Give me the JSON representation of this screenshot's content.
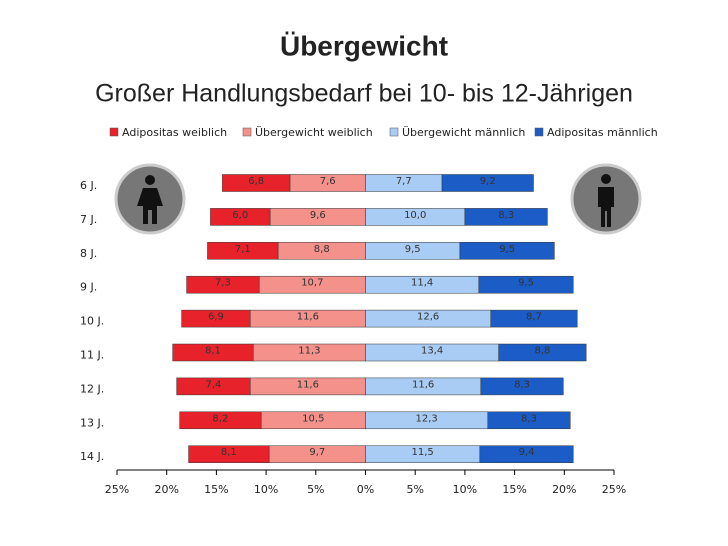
{
  "chart_data": {
    "type": "butterfly-bar",
    "title": "Übergewicht",
    "subtitle": "Großer Handlungsbedarf bei 10- bis 12-Jährigen",
    "categories": [
      "6 J.",
      "7 J.",
      "8 J.",
      "9 J.",
      "10 J.",
      "11 J.",
      "12 J.",
      "13 J.",
      "14 J."
    ],
    "series": [
      {
        "name": "Adipositas weiblich",
        "color": "#e8222b",
        "side": "left",
        "values": [
          6.8,
          6.0,
          7.1,
          7.3,
          6.9,
          8.1,
          7.4,
          8.2,
          8.1
        ],
        "value_labels": [
          "6,8",
          "6,0",
          "7,1",
          "7,3",
          "6,9",
          "8,1",
          "7,4",
          "8,2",
          "8,1"
        ]
      },
      {
        "name": "Übergewicht weiblich",
        "color": "#f4918b",
        "side": "left",
        "values": [
          7.6,
          9.6,
          8.8,
          10.7,
          11.6,
          11.3,
          11.6,
          10.5,
          9.7
        ],
        "value_labels": [
          "7,6",
          "9,6",
          "8,8",
          "10,7",
          "11,6",
          "11,3",
          "11,6",
          "10,5",
          "9,7"
        ]
      },
      {
        "name": "Übergewicht männlich",
        "color": "#a8ccf4",
        "side": "right",
        "values": [
          7.7,
          10.0,
          9.5,
          11.4,
          12.6,
          13.4,
          11.6,
          12.3,
          11.5
        ],
        "value_labels": [
          "7,7",
          "10,0",
          "9,5",
          "11,4",
          "12,6",
          "13,4",
          "11,6",
          "12,3",
          "11,5"
        ]
      },
      {
        "name": "Adipositas männlich",
        "color": "#1b5cc6",
        "side": "right",
        "values": [
          9.2,
          8.3,
          9.5,
          9.5,
          8.7,
          8.8,
          8.3,
          8.3,
          9.4
        ],
        "value_labels": [
          "9,2",
          "8,3",
          "9,5",
          "9,5",
          "8,7",
          "8,8",
          "8,3",
          "8,3",
          "9,4"
        ]
      }
    ],
    "xlim": [
      -25,
      25
    ],
    "xticks": [
      {
        "value": -25,
        "label": "25%"
      },
      {
        "value": -20,
        "label": "20%"
      },
      {
        "value": -15,
        "label": "15%"
      },
      {
        "value": -10,
        "label": "10%"
      },
      {
        "value": -5,
        "label": "5%"
      },
      {
        "value": 0,
        "label": "0%"
      },
      {
        "value": 5,
        "label": "5%"
      },
      {
        "value": 10,
        "label": "10%"
      },
      {
        "value": 15,
        "label": "15%"
      },
      {
        "value": 20,
        "label": "20%"
      },
      {
        "value": 25,
        "label": "25%"
      }
    ]
  }
}
